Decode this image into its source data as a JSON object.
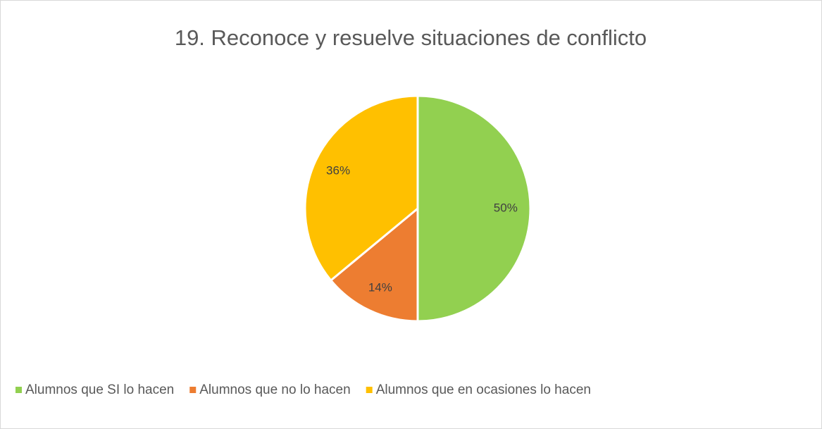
{
  "chart_data": {
    "type": "pie",
    "title": "19. Reconoce y resuelve situaciones de conflicto",
    "categories": [
      "Alumnos que SI lo hacen",
      "Alumnos que no lo hacen",
      "Alumnos que en ocasiones lo hacen"
    ],
    "values": [
      50,
      14,
      36
    ],
    "value_labels": [
      "50%",
      "14%",
      "36%"
    ],
    "colors": [
      "#92d050",
      "#ed7d31",
      "#ffc000"
    ],
    "legend": "bottom"
  }
}
